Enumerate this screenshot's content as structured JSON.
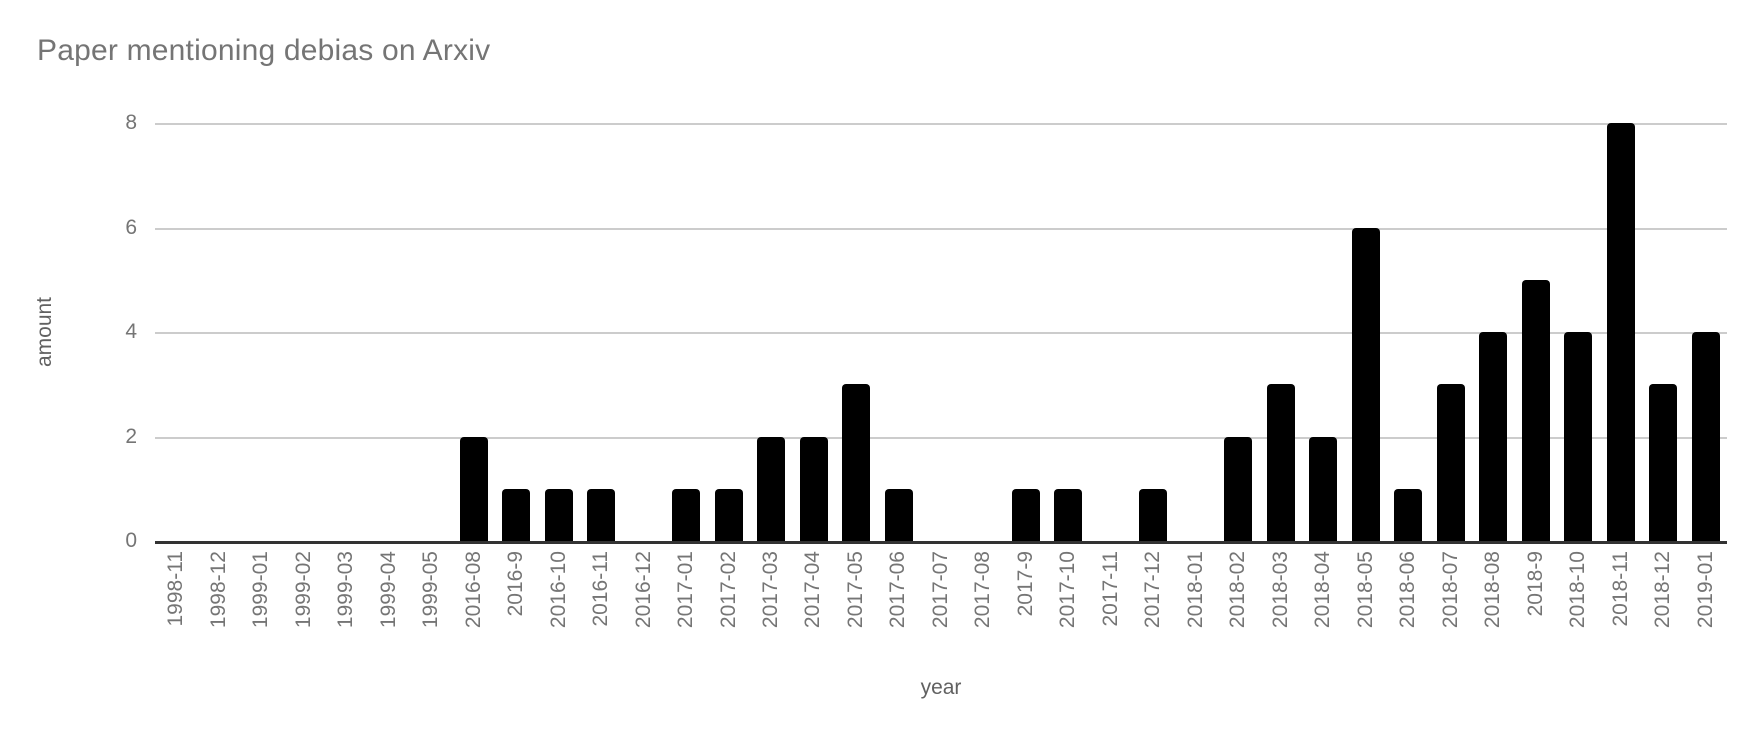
{
  "chart_data": {
    "type": "bar",
    "title": "Paper mentioning debias on Arxiv",
    "xlabel": "year",
    "ylabel": "amount",
    "ylim": [
      0,
      8
    ],
    "yticks": [
      0,
      2,
      4,
      6,
      8
    ],
    "grid": true,
    "legend_position": "none",
    "categories": [
      "1998-11",
      "1998-12",
      "1999-01",
      "1999-02",
      "1999-03",
      "1999-04",
      "1999-05",
      "2016-08",
      "2016-9",
      "2016-10",
      "2016-11",
      "2016-12",
      "2017-01",
      "2017-02",
      "2017-03",
      "2017-04",
      "2017-05",
      "2017-06",
      "2017-07",
      "2017-08",
      "2017-9",
      "2017-10",
      "2017-11",
      "2017-12",
      "2018-01",
      "2018-02",
      "2018-03",
      "2018-04",
      "2018-05",
      "2018-06",
      "2018-07",
      "2018-08",
      "2018-9",
      "2018-10",
      "2018-11",
      "2018-12",
      "2019-01"
    ],
    "values": [
      0,
      0,
      0,
      0,
      0,
      0,
      0,
      2,
      1,
      1,
      1,
      0,
      1,
      1,
      2,
      2,
      3,
      1,
      0,
      0,
      1,
      1,
      0,
      1,
      0,
      2,
      3,
      2,
      6,
      1,
      3,
      4,
      5,
      4,
      8,
      3,
      4
    ]
  },
  "colors": {
    "title": "#757575",
    "tick": "#757575",
    "axistitle": "#616161",
    "grid": "#cccccc",
    "baseline": "#333333",
    "bar": "#000000",
    "background": "#ffffff"
  }
}
